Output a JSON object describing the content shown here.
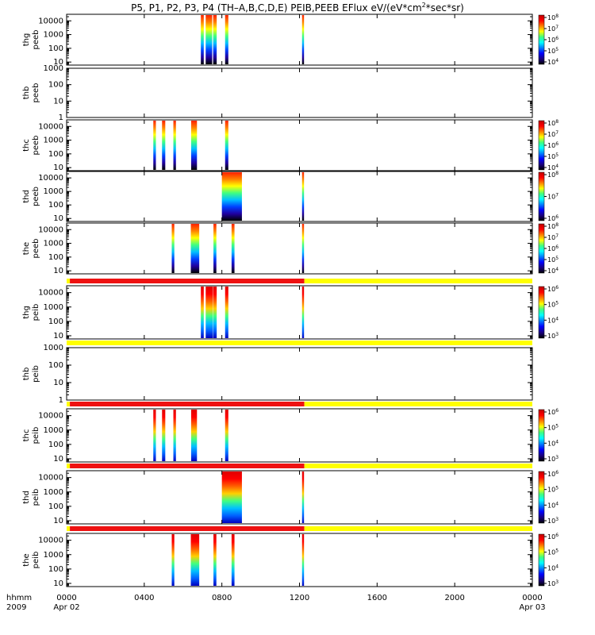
{
  "title_main": "P5, P1, P2, P3, P4 (TH–A,B,C,D,E) PEIB,PEEB EFlux eV/(eV*cm",
  "title_sup": "2",
  "title_end": "*sec*sr)",
  "x_axis": {
    "row1_label": "hhmm",
    "row2_label": "2009",
    "ticks": [
      {
        "t": 0,
        "label": "0000",
        "sub": "Apr 02"
      },
      {
        "t": 240,
        "label": "0400",
        "sub": ""
      },
      {
        "t": 480,
        "label": "0800",
        "sub": ""
      },
      {
        "t": 720,
        "label": "1200",
        "sub": ""
      },
      {
        "t": 960,
        "label": "1600",
        "sub": ""
      },
      {
        "t": 1200,
        "label": "2000",
        "sub": ""
      },
      {
        "t": 1440,
        "label": "0000",
        "sub": "Apr 03"
      }
    ],
    "range_minutes": [
      0,
      1440
    ]
  },
  "colors": {
    "ok_bar": "#ee1111",
    "fill_bar": "#ffff00"
  },
  "chart_data": [
    {
      "type": "heatmap",
      "probe": "thg",
      "product": "peeb",
      "ylim": [
        6,
        30000
      ],
      "yticks": [
        "10000",
        "1000",
        "100",
        "10"
      ],
      "zlabel": [
        "10",
        "8",
        "7",
        "6",
        "5",
        "4"
      ],
      "zexp": [
        8,
        7,
        6,
        5,
        4
      ],
      "intervals": [
        [
          415,
          424
        ],
        [
          430,
          450
        ],
        [
          453,
          464
        ],
        [
          490,
          500
        ],
        [
          728,
          734
        ]
      ]
    },
    {
      "type": "heatmap",
      "probe": "thb",
      "product": "peeb",
      "ylim": [
        1,
        1000
      ],
      "yticks": [
        "1000",
        "100",
        "10",
        "1"
      ],
      "intervals": []
    },
    {
      "type": "heatmap",
      "probe": "thc",
      "product": "peeb",
      "ylim": [
        6,
        30000
      ],
      "yticks": [
        "10000",
        "1000",
        "100",
        "10"
      ],
      "zexp": [
        8,
        7,
        6,
        5,
        4
      ],
      "intervals": [
        [
          268,
          276
        ],
        [
          295,
          305
        ],
        [
          330,
          338
        ],
        [
          385,
          403
        ],
        [
          490,
          500
        ]
      ]
    },
    {
      "type": "heatmap",
      "probe": "thd",
      "product": "peeb",
      "ylim": [
        6,
        30000
      ],
      "yticks": [
        "10000",
        "1000",
        "100",
        "10"
      ],
      "zexp": [
        8,
        7,
        6
      ],
      "intervals": [
        [
          480,
          542
        ],
        [
          728,
          734
        ]
      ]
    },
    {
      "type": "heatmap",
      "probe": "the",
      "product": "peeb",
      "ylim": [
        6,
        30000
      ],
      "yticks": [
        "10000",
        "1000",
        "100",
        "10"
      ],
      "zexp": [
        8,
        7,
        6,
        5,
        4
      ],
      "intervals": [
        [
          325,
          333
        ],
        [
          384,
          410
        ],
        [
          454,
          463
        ],
        [
          510,
          519
        ],
        [
          728,
          734
        ]
      ]
    },
    {
      "type": "heatmap",
      "probe": "thg",
      "product": "peib",
      "ylim": [
        6,
        30000
      ],
      "yticks": [
        "10000",
        "1000",
        "100",
        "10"
      ],
      "zexp": [
        6,
        5,
        4,
        3
      ],
      "bar": [
        [
          0,
          10,
          "fill"
        ],
        [
          10,
          735,
          "ok"
        ],
        [
          735,
          1440,
          "fill"
        ]
      ],
      "intervals": [
        [
          415,
          424
        ],
        [
          430,
          452
        ],
        [
          453,
          464
        ],
        [
          490,
          500
        ],
        [
          728,
          734
        ]
      ]
    },
    {
      "type": "heatmap",
      "probe": "thb",
      "product": "peib",
      "ylim": [
        1,
        1000
      ],
      "yticks": [
        "1000",
        "100",
        "10",
        "1"
      ],
      "bar": [
        [
          0,
          1440,
          "fill"
        ]
      ],
      "intervals": []
    },
    {
      "type": "heatmap",
      "probe": "thc",
      "product": "peib",
      "ylim": [
        6,
        30000
      ],
      "yticks": [
        "10000",
        "1000",
        "100",
        "10"
      ],
      "zexp": [
        6,
        5,
        4,
        3
      ],
      "bar": [
        [
          0,
          10,
          "fill"
        ],
        [
          10,
          735,
          "ok"
        ],
        [
          735,
          1440,
          "fill"
        ]
      ],
      "intervals": [
        [
          268,
          276
        ],
        [
          295,
          305
        ],
        [
          330,
          338
        ],
        [
          385,
          403
        ],
        [
          490,
          500
        ]
      ]
    },
    {
      "type": "heatmap",
      "probe": "thd",
      "product": "peib",
      "ylim": [
        6,
        30000
      ],
      "yticks": [
        "10000",
        "1000",
        "100",
        "10"
      ],
      "zexp": [
        6,
        5,
        4,
        3
      ],
      "bar": [
        [
          0,
          10,
          "fill"
        ],
        [
          10,
          735,
          "ok"
        ],
        [
          735,
          1440,
          "fill"
        ]
      ],
      "intervals": [
        [
          480,
          542
        ],
        [
          728,
          734
        ]
      ]
    },
    {
      "type": "heatmap",
      "probe": "the",
      "product": "peib",
      "ylim": [
        6,
        30000
      ],
      "yticks": [
        "10000",
        "1000",
        "100",
        "10"
      ],
      "zexp": [
        6,
        5,
        4,
        3
      ],
      "bar": [
        [
          0,
          10,
          "fill"
        ],
        [
          10,
          735,
          "ok"
        ],
        [
          735,
          1440,
          "fill"
        ]
      ],
      "intervals": [
        [
          325,
          333
        ],
        [
          384,
          410
        ],
        [
          454,
          463
        ],
        [
          510,
          519
        ],
        [
          728,
          734
        ]
      ]
    }
  ]
}
